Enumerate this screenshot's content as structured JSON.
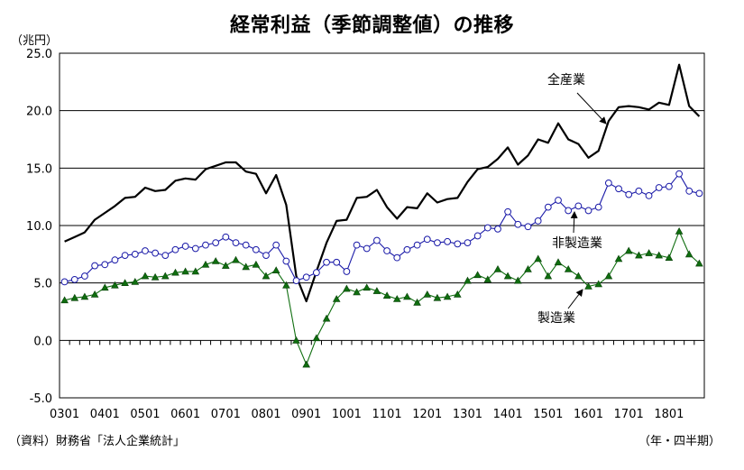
{
  "chart_data": {
    "type": "line",
    "title": "経常利益（季節調整値）の推移",
    "y_unit": "（兆円）",
    "x_unit": "（年・四半期）",
    "source": "（資料）財務省「法人企業統計」",
    "ylim": [
      -5,
      25
    ],
    "y_ticks": [
      25.0,
      20.0,
      15.0,
      10.0,
      5.0,
      0.0,
      -5.0
    ],
    "y_tick_labels": [
      "25.0",
      "20.0",
      "15.0",
      "10.0",
      "5.0",
      "0.0",
      "-5.0"
    ],
    "x_tick_labels": [
      "0301",
      "0401",
      "0501",
      "0601",
      "0701",
      "0801",
      "0901",
      "1001",
      "1101",
      "1201",
      "1301",
      "1401",
      "1501",
      "1601",
      "1701",
      "1801"
    ],
    "x_tick_every": 4,
    "grid": "horizontal",
    "series": [
      {
        "name": "全産業",
        "color": "#000000",
        "marker": "none",
        "values": [
          8.6,
          9.0,
          9.4,
          10.5,
          11.1,
          11.7,
          12.4,
          12.5,
          13.3,
          13.0,
          13.1,
          13.9,
          14.1,
          14.0,
          14.9,
          15.2,
          15.5,
          15.5,
          14.7,
          14.5,
          12.8,
          14.4,
          11.8,
          5.6,
          3.4,
          6.0,
          8.5,
          10.4,
          10.5,
          12.4,
          12.5,
          13.1,
          11.6,
          10.6,
          11.6,
          11.5,
          12.8,
          12.0,
          12.3,
          12.4,
          13.8,
          14.9,
          15.1,
          15.8,
          16.8,
          15.3,
          16.1,
          17.5,
          17.2,
          18.9,
          17.5,
          17.1,
          15.9,
          16.5,
          19.1,
          20.3,
          20.4,
          20.3,
          20.1,
          20.7,
          20.5,
          24.0,
          20.4,
          19.5
        ],
        "label": "全産業"
      },
      {
        "name": "非製造業",
        "color": "#1a1aa8",
        "marker": "open-circle",
        "values": [
          5.1,
          5.3,
          5.6,
          6.5,
          6.6,
          7.0,
          7.4,
          7.5,
          7.8,
          7.6,
          7.4,
          7.9,
          8.2,
          8.0,
          8.3,
          8.5,
          9.0,
          8.5,
          8.3,
          7.9,
          7.4,
          8.3,
          6.9,
          5.2,
          5.5,
          5.9,
          6.8,
          6.8,
          6.0,
          8.3,
          8.0,
          8.7,
          7.8,
          7.2,
          7.9,
          8.3,
          8.8,
          8.5,
          8.6,
          8.4,
          8.5,
          9.1,
          9.8,
          9.7,
          11.2,
          10.1,
          9.9,
          10.4,
          11.6,
          12.2,
          11.3,
          11.7,
          11.3,
          11.6,
          13.7,
          13.2,
          12.7,
          13.0,
          12.6,
          13.3,
          13.4,
          14.5,
          13.0,
          12.8
        ],
        "label": "非製造業"
      },
      {
        "name": "製造業",
        "color": "#0f6e0f",
        "marker": "filled-triangle",
        "values": [
          3.5,
          3.7,
          3.8,
          4.0,
          4.6,
          4.8,
          5.0,
          5.1,
          5.6,
          5.5,
          5.6,
          5.9,
          6.0,
          6.0,
          6.6,
          6.9,
          6.5,
          7.0,
          6.4,
          6.6,
          5.6,
          6.1,
          4.8,
          0.0,
          -2.1,
          0.2,
          1.9,
          3.6,
          4.5,
          4.2,
          4.6,
          4.3,
          3.9,
          3.6,
          3.8,
          3.3,
          4.0,
          3.7,
          3.8,
          4.0,
          5.2,
          5.7,
          5.3,
          6.2,
          5.6,
          5.2,
          6.2,
          7.1,
          5.6,
          6.8,
          6.2,
          5.6,
          4.7,
          4.9,
          5.6,
          7.1,
          7.8,
          7.4,
          7.6,
          7.4,
          7.2,
          9.5,
          7.5,
          6.7
        ],
        "label": "製造業"
      }
    ]
  }
}
